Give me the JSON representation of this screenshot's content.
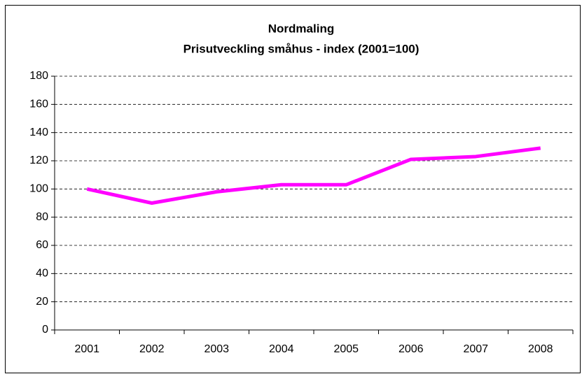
{
  "chart_data": {
    "type": "line",
    "title": "Nordmaling",
    "subtitle": "Prisutveckling småhus - index (2001=100)",
    "categories": [
      "2001",
      "2002",
      "2003",
      "2004",
      "2005",
      "2006",
      "2007",
      "2008"
    ],
    "series": [
      {
        "name": "Nordmaling",
        "color": "#ff00ff",
        "values": [
          100,
          90,
          98,
          103,
          103,
          121,
          123,
          129
        ]
      }
    ],
    "ylim": [
      0,
      180
    ],
    "yticks": [
      0,
      20,
      40,
      60,
      80,
      100,
      120,
      140,
      160,
      180
    ],
    "grid": true
  }
}
